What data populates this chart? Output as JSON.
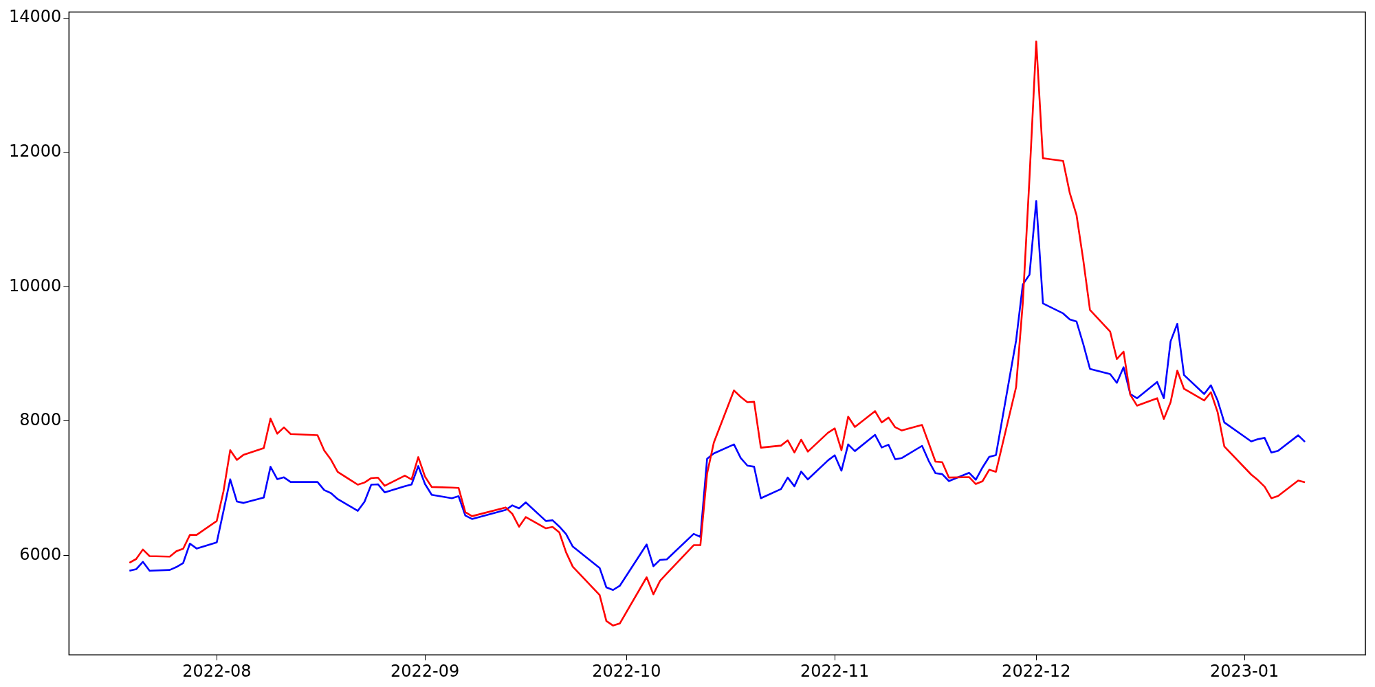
{
  "chart_data": {
    "type": "line",
    "x": [
      "2022-07-19",
      "2022-07-20",
      "2022-07-21",
      "2022-07-22",
      "2022-07-25",
      "2022-07-26",
      "2022-07-27",
      "2022-07-28",
      "2022-07-29",
      "2022-08-01",
      "2022-08-02",
      "2022-08-03",
      "2022-08-04",
      "2022-08-05",
      "2022-08-08",
      "2022-08-09",
      "2022-08-10",
      "2022-08-11",
      "2022-08-12",
      "2022-08-16",
      "2022-08-17",
      "2022-08-18",
      "2022-08-19",
      "2022-08-22",
      "2022-08-23",
      "2022-08-24",
      "2022-08-25",
      "2022-08-26",
      "2022-08-29",
      "2022-08-30",
      "2022-08-31",
      "2022-09-01",
      "2022-09-02",
      "2022-09-05",
      "2022-09-06",
      "2022-09-07",
      "2022-09-08",
      "2022-09-13",
      "2022-09-14",
      "2022-09-15",
      "2022-09-16",
      "2022-09-19",
      "2022-09-20",
      "2022-09-21",
      "2022-09-22",
      "2022-09-23",
      "2022-09-27",
      "2022-09-28",
      "2022-09-29",
      "2022-09-30",
      "2022-10-04",
      "2022-10-05",
      "2022-10-06",
      "2022-10-07",
      "2022-10-11",
      "2022-10-12",
      "2022-10-13",
      "2022-10-14",
      "2022-10-17",
      "2022-10-18",
      "2022-10-19",
      "2022-10-20",
      "2022-10-21",
      "2022-10-24",
      "2022-10-25",
      "2022-10-26",
      "2022-10-27",
      "2022-10-28",
      "2022-10-31",
      "2022-11-01",
      "2022-11-02",
      "2022-11-03",
      "2022-11-04",
      "2022-11-07",
      "2022-11-08",
      "2022-11-09",
      "2022-11-10",
      "2022-11-11",
      "2022-11-14",
      "2022-11-15",
      "2022-11-16",
      "2022-11-17",
      "2022-11-18",
      "2022-11-21",
      "2022-11-22",
      "2022-11-23",
      "2022-11-24",
      "2022-11-25",
      "2022-11-28",
      "2022-11-29",
      "2022-11-30",
      "2022-12-01",
      "2022-12-02",
      "2022-12-05",
      "2022-12-06",
      "2022-12-07",
      "2022-12-08",
      "2022-12-09",
      "2022-12-12",
      "2022-12-13",
      "2022-12-14",
      "2022-12-15",
      "2022-12-16",
      "2022-12-19",
      "2022-12-20",
      "2022-12-21",
      "2022-12-22",
      "2022-12-23",
      "2022-12-26",
      "2022-12-27",
      "2022-12-28",
      "2022-12-29",
      "2023-01-02",
      "2023-01-03",
      "2023-01-04",
      "2023-01-05",
      "2023-01-06",
      "2023-01-09",
      "2023-01-10"
    ],
    "series": [
      {
        "color": "#ff0000",
        "values": [
          5890,
          5946,
          6088,
          5990,
          5982,
          6063,
          6100,
          6305,
          6305,
          6513,
          6953,
          7566,
          7422,
          7499,
          7598,
          8038,
          7812,
          7906,
          7807,
          7789,
          7562,
          7426,
          7243,
          7053,
          7085,
          7151,
          7158,
          7037,
          7187,
          7132,
          7463,
          7173,
          7019,
          7010,
          7005,
          6645,
          6584,
          6714,
          6619,
          6427,
          6571,
          6403,
          6424,
          6342,
          6047,
          5832,
          5411,
          5024,
          4956,
          4987,
          5675,
          5421,
          5623,
          5730,
          6153,
          6153,
          7220,
          7679,
          8456,
          8360,
          8281,
          8287,
          7604,
          7635,
          7713,
          7532,
          7723,
          7545,
          7826,
          7891,
          7566,
          8066,
          7912,
          8148,
          7980,
          8052,
          7908,
          7860,
          7942,
          7669,
          7395,
          7388,
          7159,
          7166,
          7063,
          7104,
          7275,
          7245,
          8506,
          9760,
          11630,
          13650,
          11912,
          11873,
          11392,
          11065,
          10398,
          9654,
          9333,
          8923,
          9032,
          8392,
          8230,
          8340,
          8032,
          8281,
          8750,
          8480,
          8307,
          8429,
          8134,
          7621,
          7204,
          7121,
          7024,
          6852,
          6884,
          7114,
          7089
        ]
      },
      {
        "color": "#0000ff",
        "values": [
          5773,
          5795,
          5905,
          5773,
          5784,
          5828,
          5887,
          6176,
          6103,
          6195,
          6660,
          7133,
          6802,
          6781,
          6862,
          7320,
          7136,
          7162,
          7093,
          7093,
          6972,
          6928,
          6839,
          6664,
          6799,
          7053,
          7059,
          6939,
          7030,
          7056,
          7330,
          7063,
          6902,
          6851,
          6882,
          6594,
          6543,
          6677,
          6745,
          6700,
          6789,
          6512,
          6523,
          6430,
          6317,
          6132,
          5814,
          5524,
          5486,
          5548,
          6163,
          5839,
          5934,
          5941,
          6321,
          6276,
          7440,
          7518,
          7653,
          7450,
          7337,
          7320,
          6851,
          6988,
          7159,
          7029,
          7248,
          7132,
          7415,
          7491,
          7261,
          7653,
          7553,
          7795,
          7607,
          7648,
          7432,
          7450,
          7631,
          7405,
          7224,
          7210,
          7107,
          7230,
          7127,
          7309,
          7467,
          7494,
          9199,
          10033,
          10180,
          11277,
          9751,
          9603,
          9513,
          9481,
          9147,
          8776,
          8699,
          8570,
          8801,
          8403,
          8340,
          8583,
          8340,
          9187,
          9449,
          8686,
          8403,
          8532,
          8308,
          7980,
          7698,
          7730,
          7750,
          7531,
          7557,
          7788,
          7691
        ]
      }
    ],
    "xlim": [
      "2022-07-10",
      "2023-01-19"
    ],
    "xticks": [
      {
        "value": "2022-08-01",
        "label": "2022-08"
      },
      {
        "value": "2022-09-01",
        "label": "2022-09"
      },
      {
        "value": "2022-10-01",
        "label": "2022-10"
      },
      {
        "value": "2022-11-01",
        "label": "2022-11"
      },
      {
        "value": "2022-12-01",
        "label": "2022-12"
      },
      {
        "value": "2023-01-01",
        "label": "2023-01"
      }
    ],
    "ylim": [
      4520,
      14090
    ],
    "yticks": [
      6000,
      8000,
      10000,
      12000,
      14000
    ],
    "grid": false,
    "legend": false,
    "marker": "none",
    "line_style": "solid"
  }
}
